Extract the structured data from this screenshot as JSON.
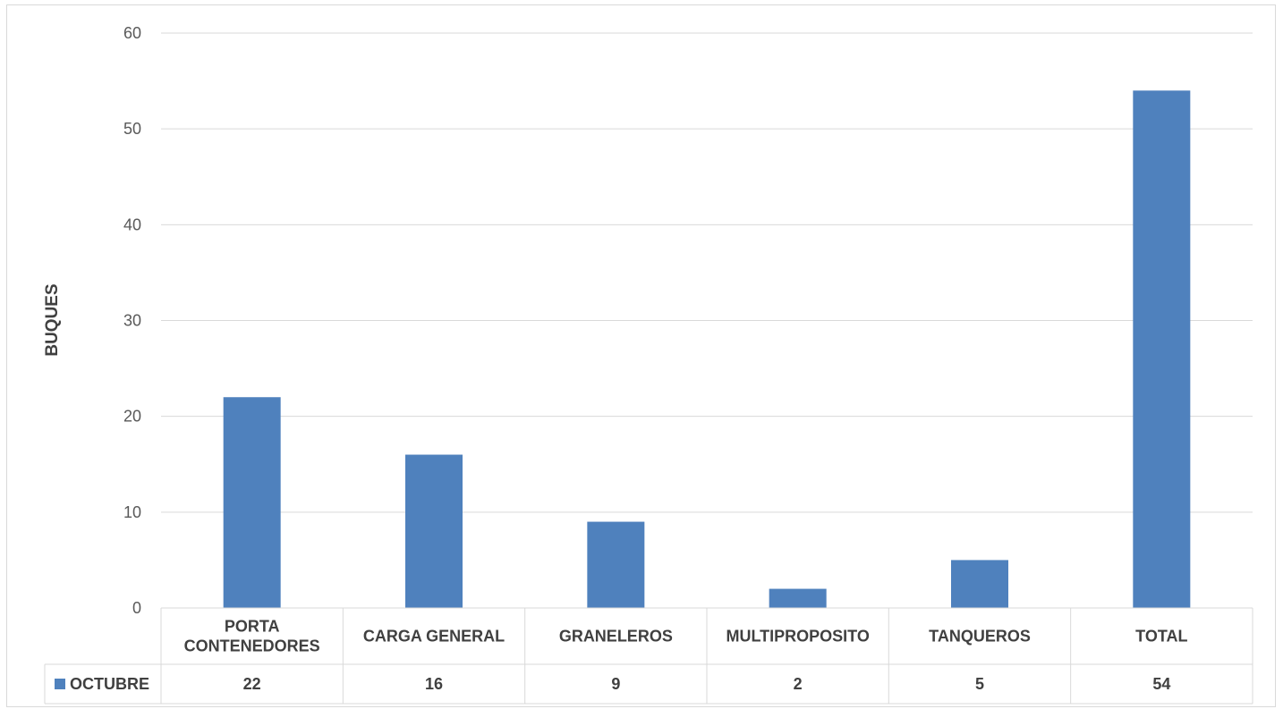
{
  "chart_data": {
    "type": "bar",
    "title": "",
    "xlabel": "",
    "ylabel": "BUQUES",
    "categories": [
      [
        "PORTA",
        "CONTENEDORES"
      ],
      [
        "CARGA GENERAL"
      ],
      [
        "GRANELEROS"
      ],
      [
        "MULTIPROPOSITO"
      ],
      [
        "TANQUEROS"
      ],
      [
        "TOTAL"
      ]
    ],
    "series": [
      {
        "name": "OCTUBRE",
        "values": [
          22,
          16,
          9,
          2,
          5,
          54
        ],
        "color": "#4f81bd"
      }
    ],
    "ylim": [
      0,
      60
    ],
    "yticks": [
      0,
      10,
      20,
      30,
      40,
      50,
      60
    ],
    "grid": true,
    "data_table": true,
    "legend_position": "data-table-left",
    "gridline_color": "#d9d9d9",
    "text_color": "#404040"
  }
}
